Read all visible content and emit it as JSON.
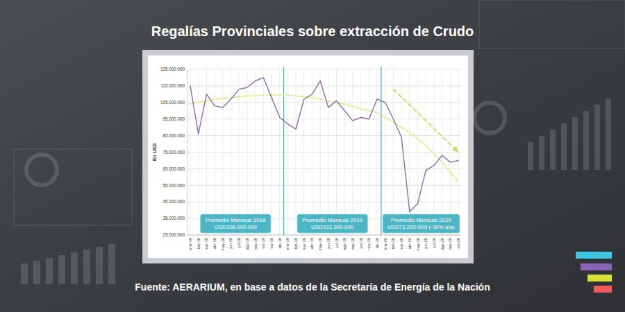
{
  "chart_data": {
    "type": "line",
    "title": "Regalías Provinciales sobre extracción de Crudo",
    "source": "Fuente: AERARIUM, en base a datos de la Secretaría de Energía de la Nación",
    "ylabel": "En USD",
    "categories": [
      "ene-18",
      "feb-18",
      "mar-18",
      "abr-18",
      "may-18",
      "jun-18",
      "jul-18",
      "ago-18",
      "sep-18",
      "oct-18",
      "nov-18",
      "dic-18",
      "ene-19",
      "feb-19",
      "mar-19",
      "abr-19",
      "may-19",
      "jun-19",
      "jul-19",
      "ago-19",
      "sep-19",
      "oct-19",
      "nov-19",
      "dic-19",
      "ene-20",
      "feb-20",
      "mar-20",
      "abr-20",
      "may-20",
      "jun-20",
      "jul-20",
      "ago-20",
      "sep-20",
      "oct-20"
    ],
    "series": [
      {
        "color": "#8a6bb0",
        "values": [
          115000000,
          86000000,
          110000000,
          103000000,
          102000000,
          107000000,
          113000000,
          114000000,
          118000000,
          120000000,
          108000000,
          96000000,
          92000000,
          89000000,
          107000000,
          110000000,
          118000000,
          102000000,
          106000000,
          100000000,
          94000000,
          96000000,
          95000000,
          107000000,
          105000000,
          95000000,
          84000000,
          39000000,
          44000000,
          64000000,
          67000000,
          73000000,
          69000000,
          70000000
        ]
      },
      {
        "color": "#d7e35a",
        "line_style": "dotted",
        "values": [
          104000000,
          105000000,
          106000000,
          107000000,
          107500000,
          108000000,
          108500000,
          109000000,
          109000000,
          109500000,
          109500000,
          109500000,
          109500000,
          109000000,
          108500000,
          108000000,
          107000000,
          106000000,
          105000000,
          104000000,
          102500000,
          101000000,
          100000000,
          99000000,
          96000000,
          93000000,
          90000000,
          87000000,
          83000000,
          79000000,
          74000000,
          69000000,
          63000000,
          57000000
        ]
      },
      {
        "color": "#c9d84a",
        "line_style": "dashed",
        "marker": "arrow",
        "values": [
          null,
          null,
          null,
          null,
          null,
          null,
          null,
          null,
          null,
          null,
          null,
          null,
          null,
          null,
          null,
          null,
          null,
          null,
          null,
          null,
          null,
          null,
          null,
          null,
          null,
          113000000,
          108250000,
          103500000,
          98750000,
          94000000,
          89250000,
          84500000,
          79750000,
          75000000
        ]
      }
    ],
    "ylim": [
      25000000,
      125000000
    ],
    "yticks": [
      {
        "value": 25000000,
        "label": "25.000.000"
      },
      {
        "value": 35000000,
        "label": "35.000.000"
      },
      {
        "value": 45000000,
        "label": "45.000.000"
      },
      {
        "value": 55000000,
        "label": "55.000.000"
      },
      {
        "value": 65000000,
        "label": "65.000.000"
      },
      {
        "value": 75000000,
        "label": "75.000.000"
      },
      {
        "value": 85000000,
        "label": "85.000.000"
      },
      {
        "value": 95000000,
        "label": "95.000.000"
      },
      {
        "value": 105000000,
        "label": "105.000.000"
      },
      {
        "value": 115000000,
        "label": "115.000.000"
      },
      {
        "value": 125000000,
        "label": "125.000.000"
      }
    ],
    "grid": true,
    "annotations": [
      {
        "lines": [
          "Promedio Mensual 2018",
          "USD108.000.000"
        ]
      },
      {
        "lines": [
          "Promedio Mensual 2019",
          "USD101.000.000"
        ]
      },
      {
        "lines": [
          "Promedio Mensual 2020",
          "USD71.000.000 (-30% a/a)"
        ]
      }
    ]
  }
}
